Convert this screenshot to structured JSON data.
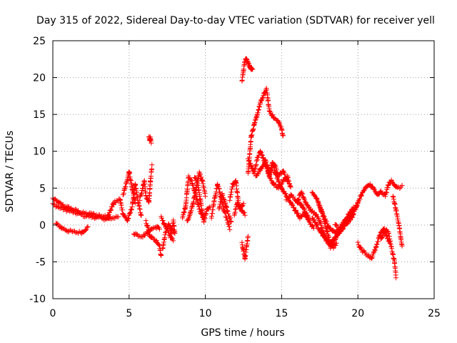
{
  "chart_data": {
    "type": "scatter",
    "title": "Day 315 of 2022, Sidereal Day-to-day VTEC variation (SDTVAR) for receiver yell",
    "xlabel": "GPS time / hours",
    "ylabel": "SDTVAR / TECUs",
    "xlim": [
      0,
      25
    ],
    "ylim": [
      -10,
      25
    ],
    "xticks": [
      0,
      5,
      10,
      15,
      20,
      25
    ],
    "yticks": [
      -10,
      -5,
      0,
      5,
      10,
      15,
      20,
      25
    ],
    "grid": true,
    "marker": "+",
    "colors": {
      "series": "#ff0000",
      "grid": "#a0a0a0",
      "axis": "#000000"
    },
    "series": [
      {
        "name": "SDTVAR",
        "tracks": [
          [
            [
              0,
              3.6
            ],
            [
              0.4,
              3.0
            ],
            [
              0.8,
              2.5
            ],
            [
              1.2,
              2.2
            ],
            [
              1.6,
              1.9
            ],
            [
              2.0,
              1.6
            ],
            [
              2.5,
              1.5
            ],
            [
              3.0,
              1.3
            ],
            [
              3.5,
              1.1
            ],
            [
              4.0,
              1.0
            ],
            [
              4.3,
              1.1
            ]
          ],
          [
            [
              0,
              2.8
            ],
            [
              0.4,
              2.4
            ],
            [
              0.9,
              2.0
            ],
            [
              1.4,
              1.7
            ],
            [
              2.0,
              1.3
            ],
            [
              2.6,
              1.1
            ],
            [
              3.2,
              0.9
            ],
            [
              3.8,
              0.8
            ]
          ],
          [
            [
              0.2,
              0.2
            ],
            [
              0.6,
              -0.4
            ],
            [
              1.0,
              -0.8
            ],
            [
              1.5,
              -1.0
            ],
            [
              1.9,
              -1.0
            ],
            [
              2.3,
              -0.3
            ]
          ],
          [
            [
              3.6,
              1.2
            ],
            [
              4.0,
              3.0
            ],
            [
              4.4,
              3.5
            ],
            [
              4.6,
              1.5
            ],
            [
              4.9,
              0.6
            ],
            [
              5.2,
              2.5
            ],
            [
              5.4,
              5.5
            ],
            [
              5.6,
              3.0
            ],
            [
              5.8,
              1.2
            ]
          ],
          [
            [
              4.6,
              4.0
            ],
            [
              4.8,
              5.5
            ],
            [
              5.0,
              7.3
            ],
            [
              5.2,
              5.0
            ],
            [
              5.4,
              3.0
            ]
          ],
          [
            [
              5.7,
              3.5
            ],
            [
              5.9,
              5.0
            ],
            [
              6.0,
              6.0
            ],
            [
              6.1,
              4.0
            ],
            [
              6.3,
              3.0
            ],
            [
              6.4,
              6.0
            ],
            [
              6.5,
              8.0
            ]
          ],
          [
            [
              6.3,
              12.0
            ],
            [
              6.35,
              11.5
            ],
            [
              6.4,
              11.8
            ],
            [
              6.45,
              11.2
            ]
          ],
          [
            [
              5.3,
              -1.1
            ],
            [
              5.6,
              -1.4
            ],
            [
              5.9,
              -1.5
            ],
            [
              6.2,
              -1.0
            ],
            [
              6.5,
              -1.7
            ],
            [
              6.8,
              -2.2
            ],
            [
              7.0,
              -2.8
            ],
            [
              7.1,
              -4.3
            ]
          ],
          [
            [
              6.1,
              0.5
            ],
            [
              6.3,
              -0.8
            ],
            [
              6.5,
              -0.5
            ],
            [
              6.8,
              -0.3
            ],
            [
              7.0,
              -0.5
            ]
          ],
          [
            [
              7.2,
              -3.2
            ],
            [
              7.4,
              -1.0
            ],
            [
              7.6,
              0.0
            ],
            [
              7.8,
              -0.5
            ],
            [
              8.0,
              -1.0
            ],
            [
              7.9,
              0.5
            ],
            [
              7.7,
              -1.8
            ]
          ],
          [
            [
              7.1,
              1.0
            ],
            [
              7.3,
              0.2
            ],
            [
              7.5,
              -0.6
            ],
            [
              7.7,
              -1.4
            ],
            [
              7.9,
              -2.0
            ]
          ],
          [
            [
              8.5,
              1.0
            ],
            [
              8.7,
              2.5
            ],
            [
              8.8,
              4.5
            ],
            [
              8.9,
              6.5
            ],
            [
              9.1,
              6.0
            ],
            [
              9.3,
              4.5
            ],
            [
              9.5,
              3.0
            ],
            [
              9.7,
              1.5
            ],
            [
              9.9,
              1.0
            ]
          ],
          [
            [
              8.8,
              0.5
            ],
            [
              9.0,
              1.5
            ],
            [
              9.2,
              3.0
            ],
            [
              9.4,
              5.0
            ],
            [
              9.6,
              7.0
            ],
            [
              9.8,
              6.0
            ],
            [
              10.0,
              4.0
            ]
          ],
          [
            [
              9.3,
              6.5
            ],
            [
              9.5,
              5.5
            ],
            [
              9.7,
              3.0
            ],
            [
              9.9,
              0.5
            ],
            [
              10.1,
              2.0
            ],
            [
              10.3,
              2.5
            ]
          ],
          [
            [
              10.4,
              1.0
            ],
            [
              10.6,
              3.5
            ],
            [
              10.8,
              5.5
            ],
            [
              11.0,
              4.0
            ],
            [
              11.2,
              2.0
            ],
            [
              11.4,
              1.0
            ],
            [
              11.6,
              -0.5
            ]
          ],
          [
            [
              10.9,
              2.2
            ],
            [
              11.1,
              4.2
            ],
            [
              11.3,
              3.0
            ],
            [
              11.5,
              1.5
            ],
            [
              11.7,
              0.5
            ]
          ],
          [
            [
              11.6,
              3.5
            ],
            [
              11.8,
              5.5
            ],
            [
              12.0,
              6.0
            ],
            [
              12.2,
              2.5
            ],
            [
              12.4,
              2.0
            ],
            [
              12.6,
              1.5
            ]
          ],
          [
            [
              11.9,
              1.5
            ],
            [
              12.1,
              3.0
            ],
            [
              12.3,
              2.3
            ],
            [
              12.5,
              3.0
            ]
          ],
          [
            [
              12.4,
              -2.5
            ],
            [
              12.5,
              -3.5
            ],
            [
              12.6,
              -4.5
            ],
            [
              12.7,
              -3.0
            ],
            [
              12.8,
              -1.5
            ]
          ],
          [
            [
              12.4,
              19.5
            ],
            [
              12.5,
              21.0
            ],
            [
              12.6,
              22.3
            ],
            [
              12.7,
              22.5
            ],
            [
              12.8,
              22.0
            ],
            [
              12.9,
              21.5
            ],
            [
              13.0,
              21.3
            ],
            [
              13.1,
              21.0
            ]
          ],
          [
            [
              12.8,
              7.0
            ],
            [
              13.0,
              12.0
            ],
            [
              13.2,
              13.5
            ],
            [
              13.4,
              15.0
            ],
            [
              13.6,
              16.5
            ],
            [
              13.8,
              17.5
            ],
            [
              14.0,
              18.5
            ],
            [
              14.1,
              17.0
            ],
            [
              14.2,
              15.5
            ],
            [
              14.5,
              14.5
            ],
            [
              14.8,
              14.0
            ],
            [
              15.0,
              13.0
            ],
            [
              15.1,
              12.0
            ]
          ],
          [
            [
              12.8,
              9.0
            ],
            [
              13.0,
              8.0
            ],
            [
              13.2,
              7.0
            ],
            [
              13.4,
              9.0
            ],
            [
              13.6,
              10.0
            ],
            [
              13.8,
              9.0
            ],
            [
              14.0,
              8.0
            ],
            [
              14.2,
              7.0
            ],
            [
              14.4,
              8.5
            ],
            [
              14.6,
              7.0
            ],
            [
              14.8,
              6.0
            ],
            [
              15.0,
              5.0
            ]
          ],
          [
            [
              13.3,
              6.5
            ],
            [
              13.6,
              7.5
            ],
            [
              13.9,
              8.5
            ],
            [
              14.2,
              6.5
            ],
            [
              14.5,
              5.5
            ],
            [
              14.8,
              5.0
            ],
            [
              15.1,
              6.0
            ],
            [
              15.4,
              6.5
            ],
            [
              15.6,
              5.0
            ]
          ],
          [
            [
              13.9,
              9.0
            ],
            [
              14.2,
              6.8
            ],
            [
              14.5,
              8.3
            ],
            [
              14.8,
              6.8
            ],
            [
              15.1,
              7.3
            ],
            [
              15.4,
              5.8
            ]
          ],
          [
            [
              15.0,
              5.0
            ],
            [
              15.3,
              4.0
            ],
            [
              15.6,
              3.0
            ],
            [
              15.9,
              2.0
            ],
            [
              16.2,
              1.0
            ],
            [
              16.5,
              1.5
            ],
            [
              16.8,
              0.5
            ],
            [
              17.1,
              -0.5
            ]
          ],
          [
            [
              15.3,
              3.5
            ],
            [
              15.6,
              4.0
            ],
            [
              15.9,
              3.5
            ],
            [
              16.2,
              3.0
            ],
            [
              16.5,
              2.0
            ],
            [
              16.8,
              1.0
            ]
          ],
          [
            [
              16.0,
              3.0
            ],
            [
              16.3,
              4.5
            ],
            [
              16.6,
              3.0
            ],
            [
              16.9,
              2.0
            ],
            [
              17.2,
              1.5
            ],
            [
              17.5,
              0.5
            ],
            [
              17.8,
              -1.5
            ],
            [
              18.1,
              -2.5
            ],
            [
              18.4,
              -2.0
            ],
            [
              18.7,
              -1.0
            ],
            [
              19.0,
              -0.5
            ],
            [
              19.3,
              0.3
            ],
            [
              19.6,
              1.0
            ],
            [
              19.9,
              2.5
            ],
            [
              20.2,
              4.0
            ],
            [
              20.5,
              5.0
            ],
            [
              20.8,
              5.5
            ],
            [
              21.0,
              5.0
            ],
            [
              21.3,
              4.0
            ],
            [
              21.5,
              4.5
            ],
            [
              21.8,
              4.0
            ],
            [
              22.0,
              5.5
            ],
            [
              22.2,
              6.0
            ],
            [
              22.4,
              5.5
            ],
            [
              22.6,
              5.0
            ],
            [
              22.9,
              5.2
            ]
          ],
          [
            [
              17.0,
              4.5
            ],
            [
              17.3,
              3.5
            ],
            [
              17.6,
              2.0
            ],
            [
              17.9,
              0.5
            ],
            [
              18.2,
              -0.5
            ],
            [
              18.5,
              -1.0
            ],
            [
              18.8,
              -0.5
            ],
            [
              19.1,
              0.5
            ],
            [
              19.4,
              1.5
            ],
            [
              19.7,
              2.0
            ],
            [
              20.0,
              3.0
            ]
          ],
          [
            [
              17.4,
              3.0
            ],
            [
              17.6,
              2.0
            ],
            [
              17.8,
              0.5
            ],
            [
              18.0,
              -1.0
            ],
            [
              18.2,
              -2.5
            ],
            [
              18.4,
              -3.0
            ],
            [
              18.6,
              -2.5
            ]
          ],
          [
            [
              17.0,
              1.0
            ],
            [
              17.3,
              0.0
            ],
            [
              17.6,
              -1.0
            ],
            [
              17.9,
              -2.0
            ],
            [
              18.2,
              -3.0
            ],
            [
              18.5,
              -2.0
            ],
            [
              18.8,
              -1.0
            ],
            [
              19.1,
              0.0
            ],
            [
              19.4,
              1.0
            ]
          ],
          [
            [
              18.5,
              0.0
            ],
            [
              18.8,
              -0.5
            ],
            [
              19.1,
              0.0
            ],
            [
              19.4,
              1.0
            ],
            [
              19.7,
              2.5
            ]
          ],
          [
            [
              20.0,
              -2.5
            ],
            [
              20.3,
              -3.5
            ],
            [
              20.6,
              -4.0
            ],
            [
              20.9,
              -4.5
            ],
            [
              21.2,
              -3.0
            ],
            [
              21.5,
              -1.0
            ],
            [
              21.7,
              -0.5
            ],
            [
              22.0,
              -1.0
            ],
            [
              22.2,
              -3.0
            ],
            [
              22.4,
              -5.0
            ],
            [
              22.5,
              -7.0
            ]
          ],
          [
            [
              21.5,
              -2.0
            ],
            [
              21.7,
              -1.0
            ],
            [
              21.9,
              -1.5
            ],
            [
              22.1,
              -2.5
            ]
          ],
          [
            [
              22.3,
              4.0
            ],
            [
              22.5,
              2.0
            ],
            [
              22.7,
              0.0
            ],
            [
              22.8,
              -1.5
            ],
            [
              22.9,
              -3.0
            ]
          ]
        ]
      }
    ]
  }
}
